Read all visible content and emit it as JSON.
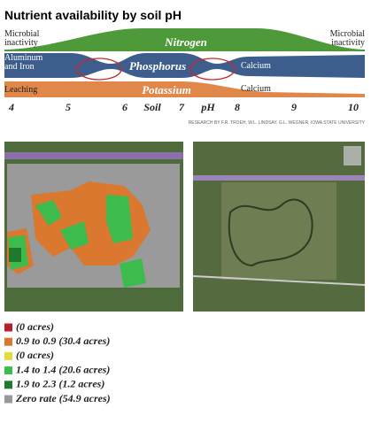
{
  "header": {
    "title": "Nutrient availability by soil pH",
    "credit": "RESEARCH BY F.R. TROEH, W.L. LINDSAY, G.L. WEGNER, IOWA STATE UNIVERSITY"
  },
  "bands": {
    "nitrogen": {
      "name": "Nitrogen",
      "left": [
        "Microbial",
        "inactivity"
      ],
      "right": [
        "Microbial",
        "inactivity"
      ]
    },
    "phosphorus": {
      "name": "Phosphorus",
      "left": [
        "Aluminum",
        "and Iron"
      ],
      "right": "Calcium"
    },
    "potassium": {
      "name": "Potassium",
      "left": "Leaching",
      "right": "Calcium"
    }
  },
  "axis": [
    "4",
    "5",
    "6",
    "Soil",
    "7",
    "pH",
    "8",
    "9",
    "10"
  ],
  "legend": [
    {
      "color": "#b5202c",
      "label": "(0 acres)"
    },
    {
      "color": "#d9782e",
      "label": "0.9 to 0.9 (30.4 acres)"
    },
    {
      "color": "#e3dc3a",
      "label": "(0 acres)"
    },
    {
      "color": "#3dbb4d",
      "label": "1.4 to 1.4 (20.6 acres)"
    },
    {
      "color": "#1d7a2e",
      "label": "1.9 to 2.3 (1.2 acres)"
    },
    {
      "color": "#999999",
      "label": "Zero rate (54.9 acres)"
    }
  ]
}
